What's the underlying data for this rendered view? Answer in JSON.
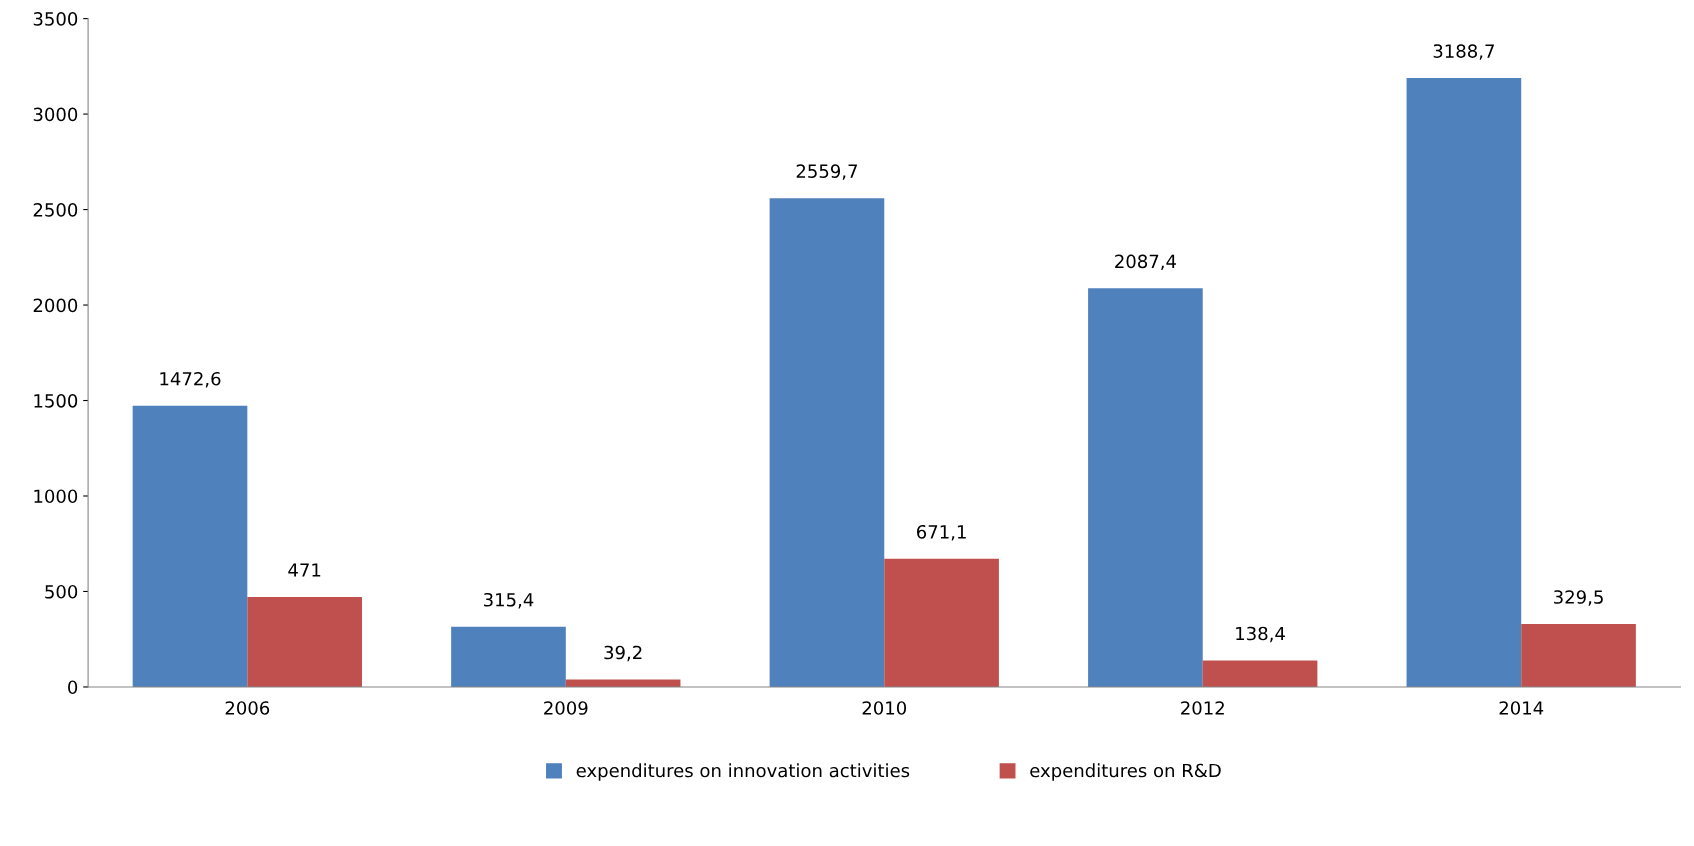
{
  "chart_data": {
    "type": "bar",
    "categories": [
      "2006",
      "2009",
      "2010",
      "2012",
      "2014"
    ],
    "series": [
      {
        "name": "expenditures on innovation activities",
        "color": "#4f81bd",
        "values": [
          1472.6,
          315.4,
          2559.7,
          2087.4,
          3188.7
        ],
        "value_labels": [
          "1472,6",
          "315,4",
          "2559,7",
          "2087,4",
          "3188,7"
        ]
      },
      {
        "name": "expenditures on R&D",
        "color": "#c0504d",
        "values": [
          471,
          39.2,
          671.1,
          138.4,
          329.5
        ],
        "value_labels": [
          "471",
          "39,2",
          "671,1",
          "138,4",
          "329,5"
        ]
      }
    ],
    "ylim": [
      0,
      3500
    ],
    "yticks": [
      0,
      500,
      1000,
      1500,
      2000,
      2500,
      3000,
      3500
    ],
    "grid": false,
    "legend": "bottom"
  }
}
